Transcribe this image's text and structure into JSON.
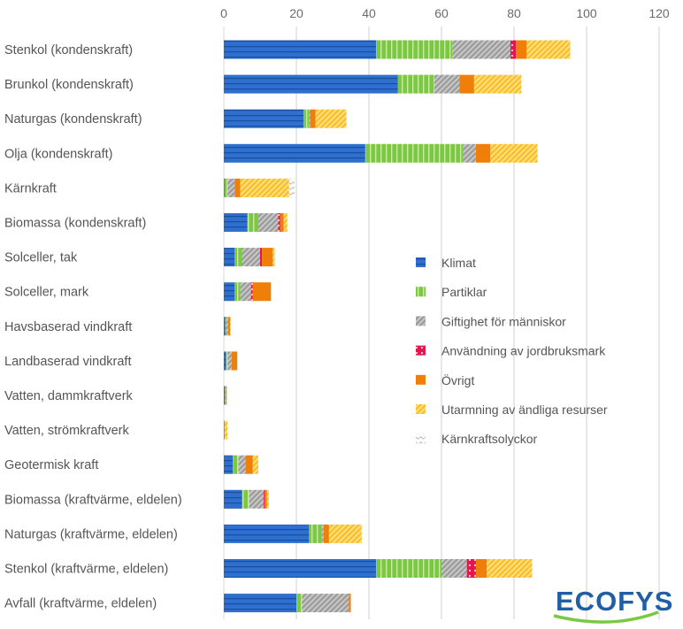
{
  "chart_data": {
    "type": "bar",
    "orientation": "horizontal",
    "stacked": true,
    "xlim": [
      0,
      120
    ],
    "xticks": [
      0,
      20,
      40,
      60,
      80,
      100,
      120
    ],
    "xtick_position": "top",
    "grid": "vertical",
    "legend_position": "center-right",
    "categories": [
      "Stenkol (kondenskraft)",
      "Brunkol (kondenskraft)",
      "Naturgas (kondenskraft)",
      "Olja (kondenskraft)",
      "Kärnkraft",
      "Biomassa (kondenskraft)",
      "Solceller, tak",
      "Solceller, mark",
      "Havsbaserad vindkraft",
      "Landbaserad vindkraft",
      "Vatten, dammkraftverk",
      "Vatten, strömkraftverk",
      "Geotermisk kraft",
      "Biomassa (kraftvärme, eldelen)",
      "Naturgas (kraftvärme, eldelen)",
      "Stenkol (kraftvärme, eldelen)",
      "Avfall (kraftvärme, eldelen)"
    ],
    "series": [
      {
        "name": "Klimat",
        "color": "#2e6fcf",
        "pattern": "horizontal-stripes",
        "values": [
          42,
          48,
          22,
          39,
          0.2,
          6.5,
          3,
          3,
          0.4,
          0.6,
          0.3,
          0.1,
          2.5,
          5,
          23.5,
          42,
          20
        ]
      },
      {
        "name": "Partiklar",
        "color": "#7ac943",
        "pattern": "vertical-stripes",
        "values": [
          21,
          10,
          1.5,
          27,
          0.8,
          3,
          2,
          1.5,
          0.2,
          0.4,
          0.1,
          0.1,
          1.5,
          2,
          3.5,
          18,
          1.5
        ]
      },
      {
        "name": "Giftighet för människor",
        "color": "#9e9e9e",
        "pattern": "diagonal-hatch",
        "values": [
          16,
          7,
          0.3,
          3.5,
          2,
          5.5,
          5,
          3,
          0.6,
          1.2,
          0.2,
          0,
          2,
          4,
          0.5,
          7,
          13
        ]
      },
      {
        "name": "Användning av jordbruksmark",
        "color": "#e3174f",
        "pattern": "dots",
        "values": [
          1.5,
          0,
          0,
          0,
          0,
          0.5,
          0.5,
          0.5,
          0,
          0,
          0,
          0,
          0,
          0.3,
          0,
          2.5,
          0
        ]
      },
      {
        "name": "Övrigt",
        "color": "#f07f09",
        "pattern": "solid",
        "values": [
          3,
          4,
          1.5,
          4,
          1.5,
          1,
          3,
          5,
          0.5,
          1.5,
          0.2,
          0,
          2,
          0.6,
          1.5,
          3,
          0.5
        ]
      },
      {
        "name": "Utarmning av ändliga resurser",
        "color": "#fbc02d",
        "pattern": "diagonal-hatch",
        "values": [
          12,
          13,
          8.5,
          13,
          13.5,
          1,
          0.5,
          0,
          0.2,
          0,
          0,
          0.8,
          1.5,
          0.5,
          9,
          12.5,
          0
        ]
      },
      {
        "name": "Kärnkraftsolyckor",
        "color": "#bdbdbd",
        "pattern": "wave",
        "values": [
          0,
          0,
          0,
          0,
          1.5,
          0,
          0,
          0,
          0,
          0,
          0,
          0,
          0,
          0,
          0,
          0,
          0
        ]
      }
    ]
  },
  "logo": {
    "text": "ECOFYS"
  }
}
